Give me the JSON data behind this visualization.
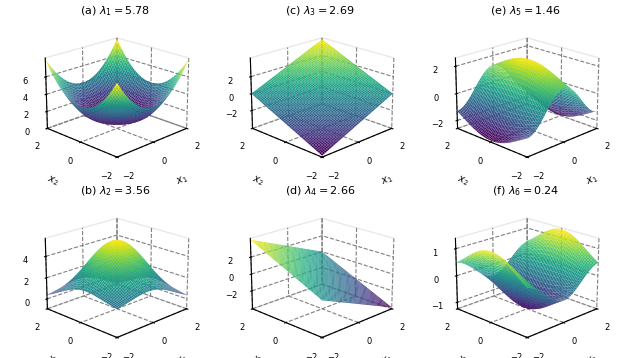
{
  "panels": [
    {
      "label": "(a)",
      "lambda_idx": 1,
      "lambda_val": 5.78,
      "func": "a",
      "zticks": [
        0,
        2,
        4,
        6
      ]
    },
    {
      "label": "(b)",
      "lambda_idx": 2,
      "lambda_val": 3.56,
      "func": "b",
      "zticks": [
        0,
        2,
        4
      ]
    },
    {
      "label": "(c)",
      "lambda_idx": 3,
      "lambda_val": 2.69,
      "func": "c",
      "zticks": [
        -2,
        0,
        2
      ]
    },
    {
      "label": "(d)",
      "lambda_idx": 4,
      "lambda_val": 2.66,
      "func": "d",
      "zticks": [
        -2,
        0,
        2
      ]
    },
    {
      "label": "(e)",
      "lambda_idx": 5,
      "lambda_val": 1.46,
      "func": "e",
      "zticks": [
        -2,
        0,
        2
      ]
    },
    {
      "label": "(f)",
      "lambda_idx": 6,
      "lambda_val": 0.24,
      "func": "f",
      "zticks": [
        -1,
        0,
        1
      ]
    }
  ],
  "cmap": "viridis",
  "n": 50,
  "xlim": [
    -2,
    2
  ],
  "elev": 20,
  "azim": -135,
  "fig_w": 6.4,
  "fig_h": 3.58,
  "dpi": 100,
  "label_fontsize": 7,
  "title_fontsize": 8,
  "tick_fontsize": 6
}
